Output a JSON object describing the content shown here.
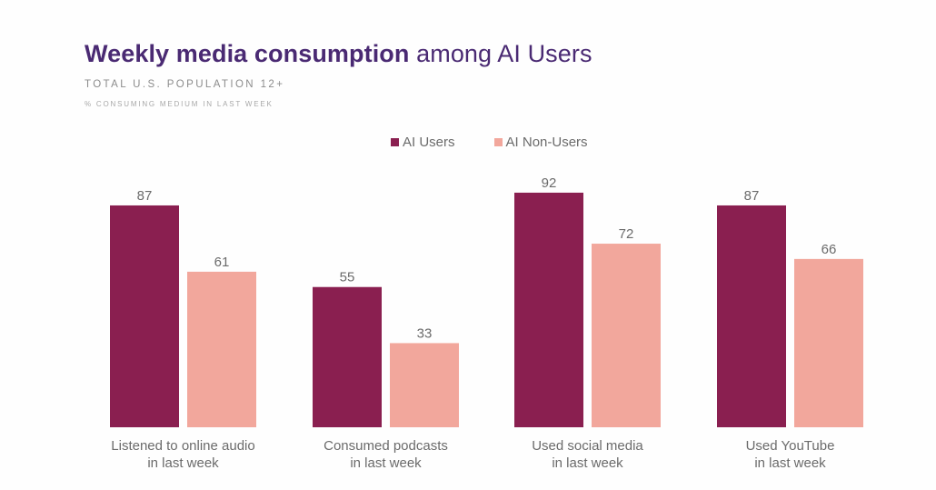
{
  "chart_data": {
    "type": "bar",
    "title_bold": "Weekly media consumption",
    "title_rest": "among AI Users",
    "subtitle": "TOTAL U.S. POPULATION 12+",
    "subsubtitle": "% CONSUMING MEDIUM IN LAST WEEK",
    "categories": [
      [
        "Listened to online audio",
        "in last week"
      ],
      [
        "Consumed podcasts",
        "in last week"
      ],
      [
        "Used social media",
        "in last week"
      ],
      [
        "Used YouTube",
        "in last week"
      ]
    ],
    "series": [
      {
        "name": "AI Users",
        "color": "#8a1f50",
        "values": [
          87,
          55,
          92,
          87
        ]
      },
      {
        "name": "AI Non-Users",
        "color": "#f2a79c",
        "values": [
          61,
          33,
          72,
          66
        ]
      }
    ],
    "xlabel": "",
    "ylabel": "",
    "ylim": [
      0,
      100
    ],
    "grid": false,
    "legend_position": "top-center",
    "data_labels": true
  }
}
